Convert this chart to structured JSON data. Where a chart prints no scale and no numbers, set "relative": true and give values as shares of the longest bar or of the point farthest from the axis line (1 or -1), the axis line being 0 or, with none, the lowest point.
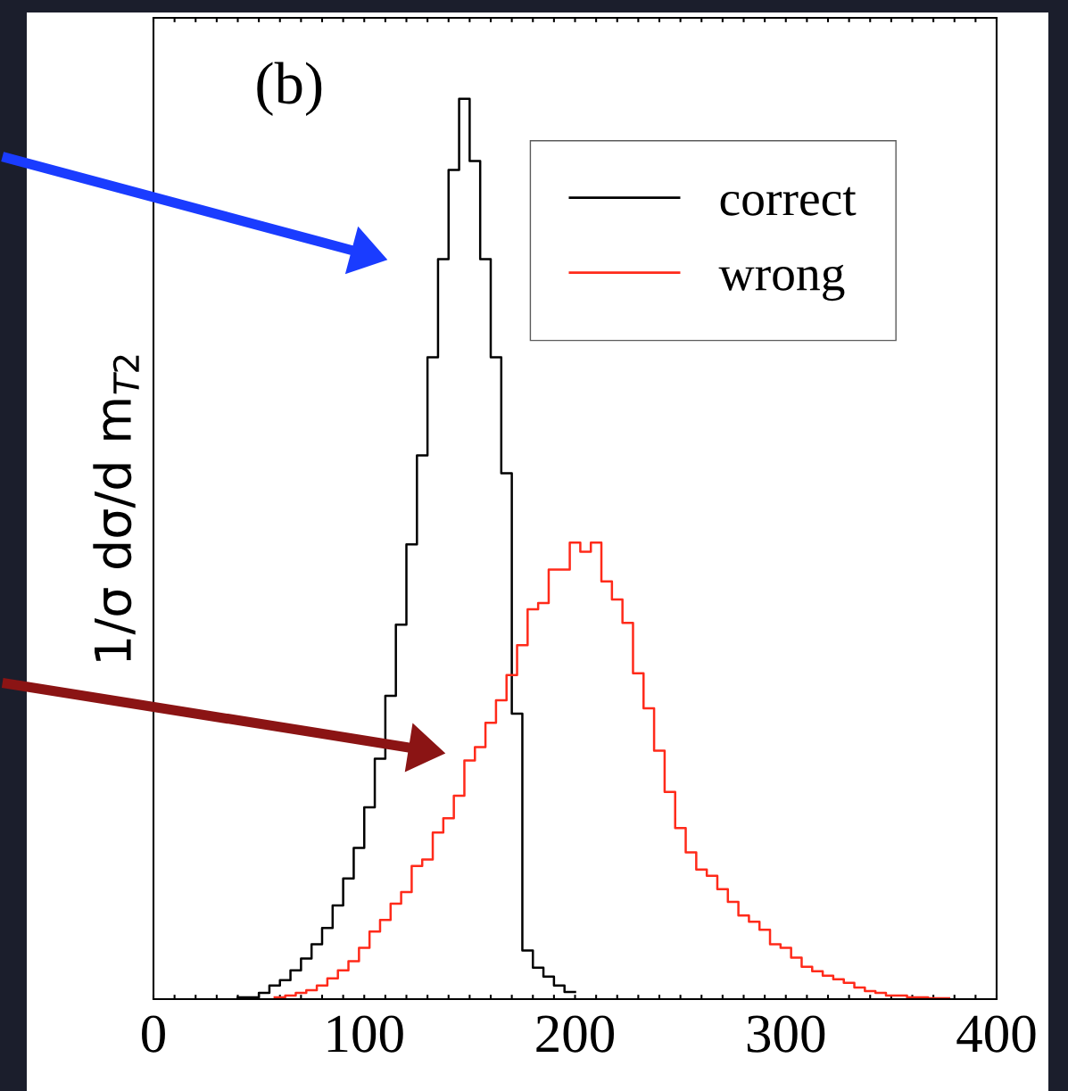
{
  "chart_data": {
    "type": "step",
    "relative": true,
    "ylabel": "1/σ dσ/d m$_{T2}$",
    "annotations": [
      "(b)"
    ],
    "xlim": [
      0,
      400
    ],
    "xticks": [
      0,
      {
        "value": 10,
        "label": null
      },
      {
        "value": 20,
        "label": null
      },
      {
        "value": 30,
        "label": null
      },
      {
        "value": 40,
        "label": null
      },
      {
        "value": 50,
        "label": null
      },
      {
        "value": 60,
        "label": null
      },
      {
        "value": 70,
        "label": null
      },
      {
        "value": 80,
        "label": null
      },
      {
        "value": 90,
        "label": null
      },
      100,
      {
        "value": 110,
        "label": null
      },
      {
        "value": 120,
        "label": null
      },
      {
        "value": 130,
        "label": null
      },
      {
        "value": 140,
        "label": null
      },
      {
        "value": 150,
        "label": null
      },
      {
        "value": 160,
        "label": null
      },
      {
        "value": 170,
        "label": null
      },
      {
        "value": 180,
        "label": null
      },
      {
        "value": 190,
        "label": null
      },
      200,
      {
        "value": 210,
        "label": null
      },
      {
        "value": 220,
        "label": null
      },
      {
        "value": 230,
        "label": null
      },
      {
        "value": 240,
        "label": null
      },
      {
        "value": 250,
        "label": null
      },
      {
        "value": 260,
        "label": null
      },
      {
        "value": 270,
        "label": null
      },
      {
        "value": 280,
        "label": null
      },
      {
        "value": 290,
        "label": null
      },
      300,
      {
        "value": 310,
        "label": null
      },
      {
        "value": 320,
        "label": null
      },
      {
        "value": 330,
        "label": null
      },
      {
        "value": 340,
        "label": null
      },
      {
        "value": 350,
        "label": null
      },
      {
        "value": 360,
        "label": null
      },
      {
        "value": 370,
        "label": null
      },
      {
        "value": 380,
        "label": null
      },
      {
        "value": 390,
        "label": null
      },
      400
    ],
    "legend": "top right",
    "grid": false,
    "series": [
      {
        "name": "correct",
        "color": "#000000",
        "x": [
          40,
          45,
          50,
          55,
          60,
          65,
          70,
          75,
          80,
          85,
          90,
          95,
          100,
          105,
          110,
          115,
          120,
          125,
          130,
          135,
          140,
          145,
          150,
          155,
          160,
          165,
          170,
          175,
          180,
          185,
          190,
          195,
          200
        ],
        "values": [
          0.002,
          0.002,
          0.007,
          0.015,
          0.021,
          0.032,
          0.045,
          0.061,
          0.079,
          0.104,
          0.134,
          0.168,
          0.213,
          0.267,
          0.337,
          0.416,
          0.505,
          0.604,
          0.713,
          0.822,
          0.921,
          1.0,
          0.931,
          0.822,
          0.713,
          0.584,
          0.317,
          0.054,
          0.035,
          0.025,
          0.015,
          0.008,
          0.008
        ]
      },
      {
        "name": "wrong",
        "color": "#ff2a1a",
        "x": [
          57.5,
          62.5,
          67.5,
          72.5,
          77.5,
          82.5,
          87.5,
          92.5,
          97.5,
          102.5,
          107.5,
          112.5,
          117.5,
          122.5,
          127.5,
          132.5,
          137.5,
          142.5,
          147.5,
          152.5,
          157.5,
          162.5,
          167.5,
          172.5,
          177.5,
          182.5,
          187.5,
          192.5,
          197.5,
          202.5,
          207.5,
          212.5,
          217.5,
          222.5,
          227.5,
          232.5,
          237.5,
          242.5,
          247.5,
          252.5,
          257.5,
          262.5,
          267.5,
          272.5,
          277.5,
          282.5,
          287.5,
          292.5,
          297.5,
          302.5,
          307.5,
          312.5,
          317.5,
          322.5,
          327.5,
          332.5,
          337.5,
          342.5,
          347.5,
          352.5,
          357.5,
          362.5,
          367.5,
          372.5,
          377.5
        ],
        "values": [
          0.002,
          0.004,
          0.007,
          0.01,
          0.015,
          0.023,
          0.032,
          0.042,
          0.057,
          0.075,
          0.088,
          0.106,
          0.119,
          0.148,
          0.155,
          0.185,
          0.201,
          0.226,
          0.265,
          0.28,
          0.307,
          0.332,
          0.36,
          0.393,
          0.433,
          0.44,
          0.477,
          0.477,
          0.507,
          0.497,
          0.507,
          0.464,
          0.444,
          0.418,
          0.362,
          0.323,
          0.276,
          0.23,
          0.19,
          0.163,
          0.144,
          0.137,
          0.122,
          0.108,
          0.093,
          0.086,
          0.077,
          0.061,
          0.057,
          0.046,
          0.036,
          0.031,
          0.026,
          0.022,
          0.018,
          0.013,
          0.009,
          0.007,
          0.004,
          0.004,
          0.002,
          0.002,
          0.001,
          0.001,
          0.001
        ]
      }
    ]
  }
}
